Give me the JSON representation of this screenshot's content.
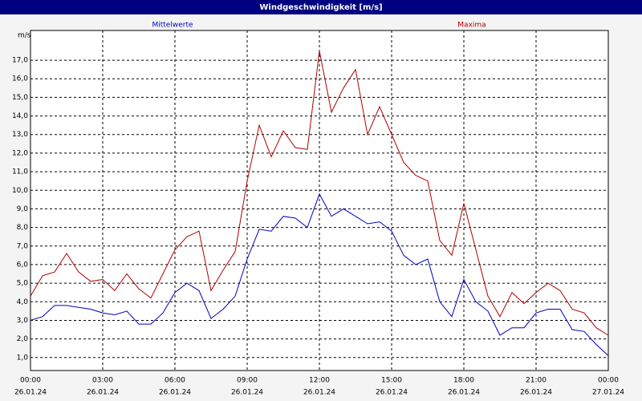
{
  "chart_data": {
    "type": "line",
    "title": "Windgeschwindigkeit [m/s]",
    "y_unit": "m/s",
    "x": [
      0,
      0.5,
      1,
      1.5,
      2,
      2.5,
      3,
      3.5,
      4,
      4.5,
      5,
      5.5,
      6,
      6.5,
      7,
      7.5,
      8,
      8.5,
      9,
      9.5,
      10,
      10.5,
      11,
      11.5,
      12,
      12.5,
      13,
      13.5,
      14,
      14.5,
      15,
      15.5,
      16,
      16.5,
      17,
      17.5,
      18,
      18.5,
      19,
      19.5,
      20,
      20.5,
      21,
      21.5,
      22,
      22.5,
      23,
      23.5,
      24
    ],
    "series": [
      {
        "name": "Mittelwerte",
        "color": "#0000c0",
        "values": [
          3.0,
          3.2,
          3.8,
          3.8,
          3.7,
          3.6,
          3.4,
          3.3,
          3.5,
          2.8,
          2.8,
          3.4,
          4.5,
          5.0,
          4.6,
          3.1,
          3.6,
          4.3,
          6.3,
          7.9,
          7.8,
          8.6,
          8.5,
          8.0,
          9.8,
          8.6,
          9.0,
          8.6,
          8.2,
          8.3,
          7.8,
          6.5,
          6.0,
          6.3,
          4.0,
          3.2,
          5.2,
          4.0,
          3.5,
          2.2,
          2.6,
          2.6,
          3.4,
          3.6,
          3.6,
          2.5,
          2.4,
          1.7,
          1.1
        ]
      },
      {
        "name": "Maxima",
        "color": "#b00000",
        "values": [
          4.3,
          5.4,
          5.6,
          6.6,
          5.6,
          5.1,
          5.2,
          4.6,
          5.5,
          4.7,
          4.2,
          5.5,
          6.8,
          7.5,
          7.8,
          4.6,
          5.7,
          6.7,
          10.5,
          13.5,
          11.8,
          13.2,
          12.3,
          12.2,
          17.5,
          14.2,
          15.5,
          16.5,
          13.0,
          14.5,
          13.0,
          11.5,
          10.8,
          10.5,
          7.3,
          6.5,
          9.3,
          6.8,
          4.3,
          3.2,
          4.5,
          3.9,
          4.5,
          5.0,
          4.6,
          3.6,
          3.4,
          2.6,
          2.2
        ]
      }
    ],
    "xlim": [
      0,
      24
    ],
    "xticks": [
      {
        "value": 0,
        "label": "00:00",
        "date": "26.01.24"
      },
      {
        "value": 3,
        "label": "03:00",
        "date": "26.01.24"
      },
      {
        "value": 6,
        "label": "06:00",
        "date": "26.01.24"
      },
      {
        "value": 9,
        "label": "09:00",
        "date": "26.01.24"
      },
      {
        "value": 12,
        "label": "12:00",
        "date": "26.01.24"
      },
      {
        "value": 15,
        "label": "15:00",
        "date": "26.01.24"
      },
      {
        "value": 18,
        "label": "18:00",
        "date": "26.01.24"
      },
      {
        "value": 21,
        "label": "21:00",
        "date": "26.01.24"
      },
      {
        "value": 24,
        "label": "00:00",
        "date": "27.01.24"
      }
    ],
    "ylim": [
      0.3,
      18.6
    ],
    "yticks": [
      {
        "value": 1,
        "label": "1,0"
      },
      {
        "value": 2,
        "label": "2,0"
      },
      {
        "value": 3,
        "label": "3,0"
      },
      {
        "value": 4,
        "label": "4,0"
      },
      {
        "value": 5,
        "label": "5,0"
      },
      {
        "value": 6,
        "label": "6,0"
      },
      {
        "value": 7,
        "label": "7,0"
      },
      {
        "value": 8,
        "label": "8,0"
      },
      {
        "value": 9,
        "label": "9,0"
      },
      {
        "value": 10,
        "label": "10,0"
      },
      {
        "value": 11,
        "label": "11,0"
      },
      {
        "value": 12,
        "label": "12,0"
      },
      {
        "value": 13,
        "label": "13,0"
      },
      {
        "value": 14,
        "label": "14,0"
      },
      {
        "value": 15,
        "label": "15,0"
      },
      {
        "value": 16,
        "label": "16,0"
      },
      {
        "value": 17,
        "label": "17,0"
      }
    ],
    "grid": true
  }
}
